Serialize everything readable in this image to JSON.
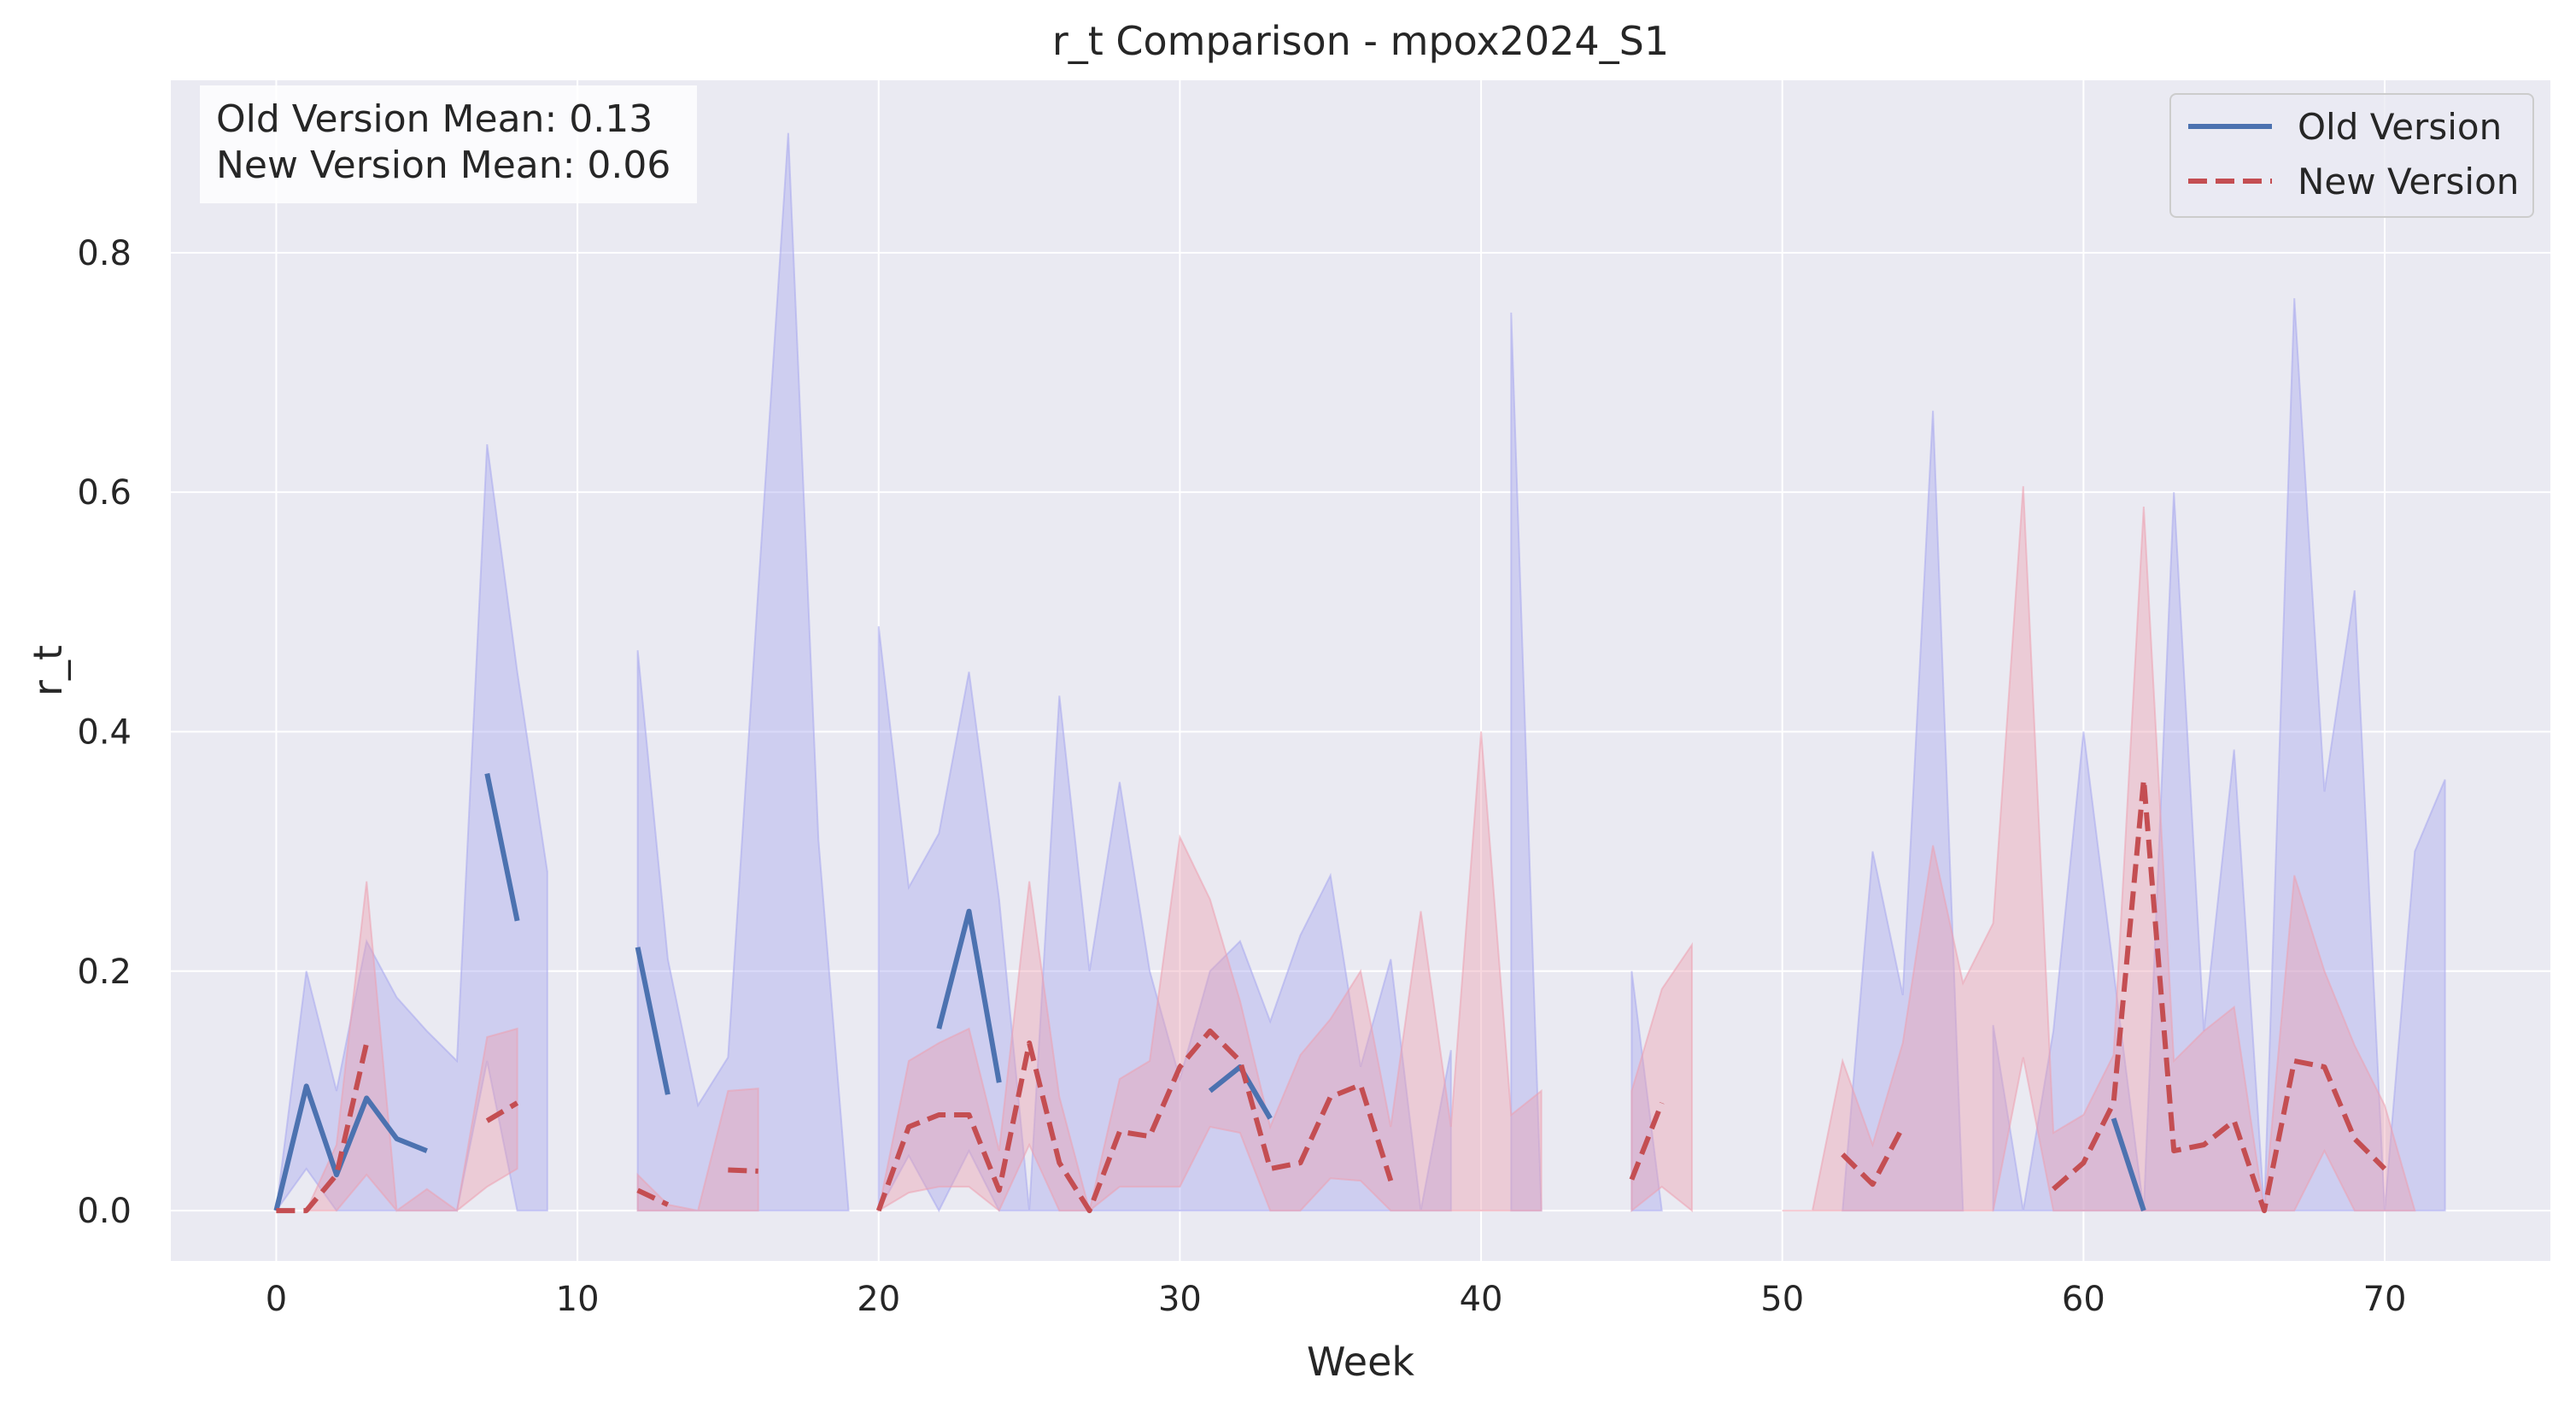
{
  "chart_data": {
    "type": "line",
    "title": "r_t Comparison - mpox2024_S1",
    "xlabel": "Week",
    "ylabel": "r_t",
    "xlim": [
      -3.5,
      75.5
    ],
    "ylim": [
      -0.042,
      0.944
    ],
    "xticks": [
      0,
      10,
      20,
      30,
      40,
      50,
      60,
      70
    ],
    "yticks": [
      0.0,
      0.2,
      0.4,
      0.6,
      0.8
    ],
    "ytick_labels": [
      "0.0",
      "0.2",
      "0.4",
      "0.6",
      "0.8"
    ],
    "grid": true,
    "legend_position": "top-right",
    "annotation": {
      "line1": "Old Version Mean: 0.13",
      "line2": "New Version Mean: 0.06"
    },
    "colors": {
      "background": "#eaeaf2",
      "grid": "#ffffff",
      "old_line": "#4c72b0",
      "old_band": "#a8a8ee",
      "new_line": "#c44e52",
      "new_band": "#eca0b0"
    },
    "series": [
      {
        "name": "Old Version",
        "style": "solid",
        "segments": [
          [
            [
              0,
              0.0
            ],
            [
              1,
              0.104
            ],
            [
              2,
              0.03
            ],
            [
              3,
              0.094
            ],
            [
              4,
              0.06
            ],
            [
              5,
              0.05
            ]
          ],
          [
            [
              7,
              0.365
            ],
            [
              8,
              0.242
            ]
          ],
          [
            [
              12,
              0.22
            ],
            [
              13,
              0.097
            ]
          ],
          [
            [
              22,
              0.152
            ],
            [
              23,
              0.25
            ],
            [
              24,
              0.107
            ]
          ],
          [
            [
              31,
              0.1
            ],
            [
              32,
              0.12
            ],
            [
              33,
              0.077
            ]
          ],
          [
            [
              61,
              0.077
            ],
            [
              62,
              0.0
            ]
          ]
        ],
        "bands": [
          [
            [
              0,
              0.0,
              0.0
            ],
            [
              1,
              0.035,
              0.2
            ],
            [
              2,
              0.0,
              0.1
            ],
            [
              3,
              0.0,
              0.225
            ],
            [
              4,
              0.0,
              0.178
            ],
            [
              5,
              0.0,
              0.15
            ],
            [
              6,
              0.0,
              0.125
            ],
            [
              7,
              0.125,
              0.64
            ],
            [
              8,
              0.0,
              0.45
            ],
            [
              9,
              0.0,
              0.283
            ]
          ],
          [
            [
              12,
              0.0,
              0.468
            ],
            [
              13,
              0.0,
              0.21
            ],
            [
              14,
              0.0,
              0.088
            ],
            [
              15,
              0.0,
              0.128
            ],
            [
              16,
              0.0,
              0.518
            ],
            [
              17,
              0.0,
              0.9
            ],
            [
              18,
              0.0,
              0.31
            ],
            [
              19,
              0.0,
              0.0
            ]
          ],
          [
            [
              20,
              0.0,
              0.488
            ],
            [
              21,
              0.046,
              0.27
            ],
            [
              22,
              0.0,
              0.315
            ],
            [
              23,
              0.05,
              0.45
            ],
            [
              24,
              0.0,
              0.26
            ],
            [
              25,
              0.0,
              0.0
            ],
            [
              26,
              0.0,
              0.43
            ],
            [
              27,
              0.0,
              0.2
            ],
            [
              28,
              0.0,
              0.358
            ],
            [
              29,
              0.0,
              0.2
            ],
            [
              30,
              0.0,
              0.11
            ],
            [
              31,
              0.0,
              0.2
            ],
            [
              32,
              0.0,
              0.225
            ],
            [
              33,
              0.0,
              0.158
            ],
            [
              34,
              0.0,
              0.23
            ],
            [
              35,
              0.0,
              0.28
            ],
            [
              36,
              0.0,
              0.12
            ],
            [
              37,
              0.0,
              0.21
            ],
            [
              38,
              0.0,
              0.0
            ],
            [
              39,
              0.0,
              0.134
            ]
          ],
          [
            [
              41,
              0.0,
              0.75
            ],
            [
              42,
              0.0,
              0.0
            ]
          ],
          [
            [
              45,
              0.0,
              0.2
            ],
            [
              46,
              0.0,
              0.0
            ]
          ],
          [
            [
              52,
              0.0,
              0.0
            ],
            [
              53,
              0.0,
              0.3
            ],
            [
              54,
              0.0,
              0.18
            ],
            [
              55,
              0.0,
              0.668
            ],
            [
              56,
              0.0,
              0.0
            ]
          ],
          [
            [
              57,
              0.0,
              0.155
            ],
            [
              58,
              0.0,
              0.0
            ],
            [
              59,
              0.0,
              0.15
            ],
            [
              60,
              0.0,
              0.4
            ],
            [
              61,
              0.0,
              0.2
            ],
            [
              62,
              0.0,
              0.0
            ],
            [
              63,
              0.0,
              0.6
            ],
            [
              64,
              0.0,
              0.15
            ],
            [
              65,
              0.0,
              0.385
            ],
            [
              66,
              0.0,
              0.0
            ],
            [
              67,
              0.0,
              0.762
            ],
            [
              68,
              0.0,
              0.35
            ],
            [
              69,
              0.0,
              0.518
            ],
            [
              70,
              0.0,
              0.0
            ],
            [
              71,
              0.0,
              0.3
            ],
            [
              72,
              0.0,
              0.36
            ]
          ]
        ]
      },
      {
        "name": "New Version",
        "style": "dashed",
        "segments": [
          [
            [
              0,
              0.0
            ],
            [
              1,
              0.0
            ],
            [
              2,
              0.03
            ],
            [
              3,
              0.14
            ]
          ],
          [
            [
              7,
              0.075
            ],
            [
              8,
              0.09
            ]
          ],
          [
            [
              12,
              0.017
            ],
            [
              13,
              0.005
            ]
          ],
          [
            [
              15,
              0.034
            ],
            [
              16,
              0.033
            ]
          ],
          [
            [
              20,
              0.0
            ],
            [
              21,
              0.07
            ],
            [
              22,
              0.08
            ],
            [
              23,
              0.08
            ],
            [
              24,
              0.017
            ],
            [
              25,
              0.14
            ],
            [
              26,
              0.04
            ],
            [
              27,
              0.0
            ],
            [
              28,
              0.066
            ],
            [
              29,
              0.062
            ],
            [
              30,
              0.12
            ],
            [
              31,
              0.15
            ],
            [
              32,
              0.125
            ],
            [
              33,
              0.035
            ],
            [
              34,
              0.04
            ],
            [
              35,
              0.095
            ],
            [
              36,
              0.105
            ],
            [
              37,
              0.025
            ]
          ],
          [
            [
              45,
              0.026
            ],
            [
              46,
              0.09
            ]
          ],
          [
            [
              52,
              0.047
            ],
            [
              53,
              0.022
            ],
            [
              54,
              0.07
            ]
          ],
          [
            [
              59,
              0.018
            ],
            [
              60,
              0.04
            ],
            [
              61,
              0.09
            ],
            [
              62,
              0.36
            ],
            [
              63,
              0.05
            ],
            [
              64,
              0.055
            ],
            [
              65,
              0.075
            ],
            [
              66,
              0.0
            ],
            [
              67,
              0.125
            ],
            [
              68,
              0.12
            ],
            [
              69,
              0.06
            ],
            [
              70,
              0.035
            ]
          ]
        ],
        "bands": [
          [
            [
              1,
              0.0,
              0.0
            ],
            [
              2,
              0.0,
              0.055
            ],
            [
              3,
              0.03,
              0.275
            ],
            [
              4,
              0.0,
              0.0
            ],
            [
              5,
              0.0,
              0.018
            ],
            [
              6,
              0.0,
              0.0
            ],
            [
              7,
              0.02,
              0.145
            ],
            [
              8,
              0.035,
              0.152
            ]
          ],
          [
            [
              12,
              0.0,
              0.03
            ],
            [
              13,
              0.0,
              0.005
            ],
            [
              14,
              0.0,
              0.0
            ],
            [
              15,
              0.0,
              0.1
            ],
            [
              16,
              0.0,
              0.102
            ]
          ],
          [
            [
              20,
              0.0,
              0.0
            ],
            [
              21,
              0.015,
              0.125
            ],
            [
              22,
              0.02,
              0.14
            ],
            [
              23,
              0.02,
              0.152
            ],
            [
              24,
              0.0,
              0.05
            ],
            [
              25,
              0.055,
              0.275
            ],
            [
              26,
              0.0,
              0.095
            ],
            [
              27,
              0.0,
              0.0
            ],
            [
              28,
              0.02,
              0.11
            ],
            [
              29,
              0.02,
              0.125
            ],
            [
              30,
              0.02,
              0.312
            ],
            [
              31,
              0.07,
              0.26
            ],
            [
              32,
              0.065,
              0.175
            ],
            [
              33,
              0.0,
              0.07
            ],
            [
              34,
              0.0,
              0.13
            ],
            [
              35,
              0.027,
              0.16
            ],
            [
              36,
              0.025,
              0.2
            ],
            [
              37,
              0.0,
              0.07
            ],
            [
              38,
              0.0,
              0.25
            ],
            [
              39,
              0.0,
              0.07
            ],
            [
              40,
              0.0,
              0.4
            ],
            [
              41,
              0.0,
              0.08
            ],
            [
              42,
              0.0,
              0.1
            ]
          ],
          [
            [
              45,
              0.0,
              0.1
            ],
            [
              46,
              0.02,
              0.185
            ],
            [
              47,
              0.0,
              0.222
            ]
          ],
          [
            [
              50,
              0.0,
              0.0
            ],
            [
              51,
              0.0,
              0.0
            ],
            [
              52,
              0.0,
              0.125
            ],
            [
              53,
              0.0,
              0.055
            ],
            [
              54,
              0.0,
              0.14
            ],
            [
              55,
              0.0,
              0.305
            ],
            [
              56,
              0.0,
              0.19
            ],
            [
              57,
              0.0,
              0.24
            ],
            [
              58,
              0.128,
              0.605
            ],
            [
              59,
              0.0,
              0.065
            ],
            [
              60,
              0.0,
              0.08
            ],
            [
              61,
              0.0,
              0.13
            ],
            [
              62,
              0.0,
              0.588
            ],
            [
              63,
              0.0,
              0.125
            ],
            [
              64,
              0.0,
              0.15
            ],
            [
              65,
              0.0,
              0.17
            ],
            [
              66,
              0.0,
              0.0
            ],
            [
              67,
              0.0,
              0.28
            ],
            [
              68,
              0.05,
              0.2
            ],
            [
              69,
              0.0,
              0.138
            ],
            [
              70,
              0.0,
              0.088
            ],
            [
              71,
              0.0,
              0.0
            ]
          ]
        ]
      }
    ]
  }
}
